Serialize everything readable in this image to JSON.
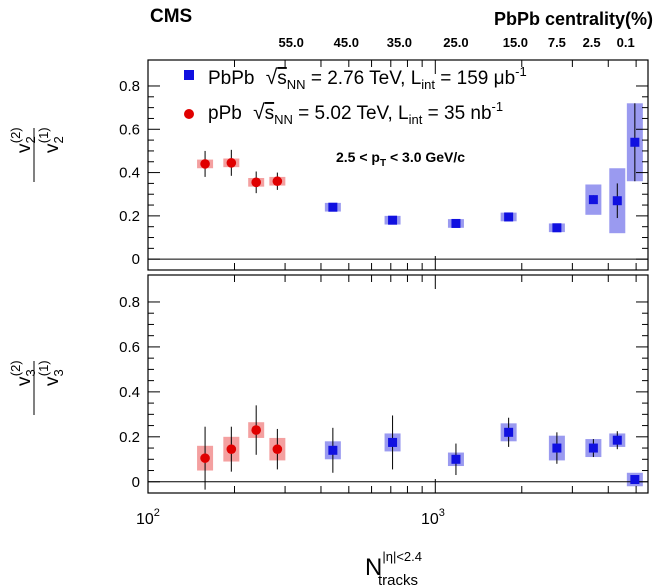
{
  "experiment_label": "CMS",
  "chart_data": {
    "type": "scatter",
    "x_scale": "log",
    "xlim": [
      100,
      5500
    ],
    "x_tick_major": [
      {
        "value": 100,
        "base": "10",
        "exp": "2"
      },
      {
        "value": 1000,
        "base": "10",
        "exp": "3"
      }
    ],
    "xlabel": {
      "base": "N",
      "sup": "|η|<2.4",
      "sub": "tracks"
    },
    "top_axis": {
      "title": "PbPb centrality(%)",
      "labels": [
        {
          "text": "55.0",
          "x": 315
        },
        {
          "text": "45.0",
          "x": 490
        },
        {
          "text": "35.0",
          "x": 750
        },
        {
          "text": "25.0",
          "x": 1180
        },
        {
          "text": "15.0",
          "x": 1900
        },
        {
          "text": "7.5",
          "x": 2650
        },
        {
          "text": "2.5",
          "x": 3500
        },
        {
          "text": "0.1",
          "x": 4600
        }
      ]
    },
    "panels": [
      {
        "id": "v2",
        "ylabel": {
          "num_main": "v",
          "num_sub": "2",
          "num_sup": "(2)",
          "den_main": "v",
          "den_sub": "2",
          "den_sup": "(1)"
        },
        "ylim": [
          -0.05,
          0.92
        ],
        "yticks": [
          0,
          0.2,
          0.4,
          0.6,
          0.8
        ],
        "ytick_labels": [
          "0",
          "0.2",
          "0.4",
          "0.6",
          "0.8"
        ],
        "annotation": {
          "main": "2.5 < p",
          "sub": "T",
          "rest": " < 3.0 GeV/c"
        },
        "legend": [
          {
            "system": "PbPb",
            "sqrt": "s",
            "sqrt_sub": "NN",
            "energy": " = 2.76 TeV, L",
            "lumi_sub": "int",
            "lumi": " = 159 μb",
            "lumi_sup": "-1",
            "color": "#1010e0",
            "marker": "square"
          },
          {
            "system": "pPb",
            "sqrt": "s",
            "sqrt_sub": "NN",
            "energy": " = 5.02 TeV, L",
            "lumi_sub": "int",
            "lumi": " = 35 nb",
            "lumi_sup": "-1",
            "color": "#e00000",
            "marker": "circle"
          }
        ],
        "series": [
          {
            "name": "pPb",
            "color": "#e00000",
            "sys_color": "#f4a0a0",
            "marker": "circle",
            "points": [
              {
                "x": 158,
                "y": 0.44,
                "stat": 0.06,
                "sys": 0.02
              },
              {
                "x": 195,
                "y": 0.445,
                "stat": 0.06,
                "sys": 0.02
              },
              {
                "x": 238,
                "y": 0.355,
                "stat": 0.05,
                "sys": 0.02
              },
              {
                "x": 282,
                "y": 0.36,
                "stat": 0.04,
                "sys": 0.02
              }
            ]
          },
          {
            "name": "PbPb",
            "color": "#1010e0",
            "sys_color": "#9a9af0",
            "marker": "square",
            "points": [
              {
                "x": 440,
                "y": 0.24,
                "stat": 0.005,
                "sys": 0.02
              },
              {
                "x": 710,
                "y": 0.18,
                "stat": 0.005,
                "sys": 0.02
              },
              {
                "x": 1180,
                "y": 0.165,
                "stat": 0.005,
                "sys": 0.02
              },
              {
                "x": 1800,
                "y": 0.195,
                "stat": 0.005,
                "sys": 0.02
              },
              {
                "x": 2650,
                "y": 0.145,
                "stat": 0.01,
                "sys": 0.02
              },
              {
                "x": 3550,
                "y": 0.275,
                "stat": 0.02,
                "sys": 0.07
              },
              {
                "x": 4300,
                "y": 0.27,
                "stat": 0.08,
                "sys": 0.15
              },
              {
                "x": 4950,
                "y": 0.54,
                "stat": 0.18,
                "sys": 0.18
              }
            ]
          }
        ]
      },
      {
        "id": "v3",
        "ylabel": {
          "num_main": "v",
          "num_sub": "3",
          "num_sup": "(2)",
          "den_main": "v",
          "den_sub": "3",
          "den_sup": "(1)"
        },
        "ylim": [
          -0.05,
          0.92
        ],
        "yticks": [
          0,
          0.2,
          0.4,
          0.6,
          0.8
        ],
        "ytick_labels": [
          "0",
          "0.2",
          "0.4",
          "0.6",
          "0.8"
        ],
        "series": [
          {
            "name": "pPb",
            "color": "#e00000",
            "sys_color": "#f4a0a0",
            "marker": "circle",
            "points": [
              {
                "x": 158,
                "y": 0.105,
                "stat": 0.14,
                "sys": 0.055
              },
              {
                "x": 195,
                "y": 0.145,
                "stat": 0.1,
                "sys": 0.055
              },
              {
                "x": 238,
                "y": 0.23,
                "stat": 0.11,
                "sys": 0.035
              },
              {
                "x": 282,
                "y": 0.145,
                "stat": 0.09,
                "sys": 0.05
              }
            ]
          },
          {
            "name": "PbPb",
            "color": "#1010e0",
            "sys_color": "#9a9af0",
            "marker": "square",
            "points": [
              {
                "x": 440,
                "y": 0.14,
                "stat": 0.1,
                "sys": 0.04
              },
              {
                "x": 710,
                "y": 0.175,
                "stat": 0.12,
                "sys": 0.04
              },
              {
                "x": 1180,
                "y": 0.1,
                "stat": 0.07,
                "sys": 0.03
              },
              {
                "x": 1800,
                "y": 0.22,
                "stat": 0.065,
                "sys": 0.04
              },
              {
                "x": 2650,
                "y": 0.15,
                "stat": 0.07,
                "sys": 0.055
              },
              {
                "x": 3550,
                "y": 0.15,
                "stat": 0.04,
                "sys": 0.04
              },
              {
                "x": 4300,
                "y": 0.185,
                "stat": 0.04,
                "sys": 0.03
              },
              {
                "x": 4950,
                "y": 0.01,
                "stat": 0.01,
                "sys": 0.03
              }
            ]
          }
        ]
      }
    ]
  }
}
